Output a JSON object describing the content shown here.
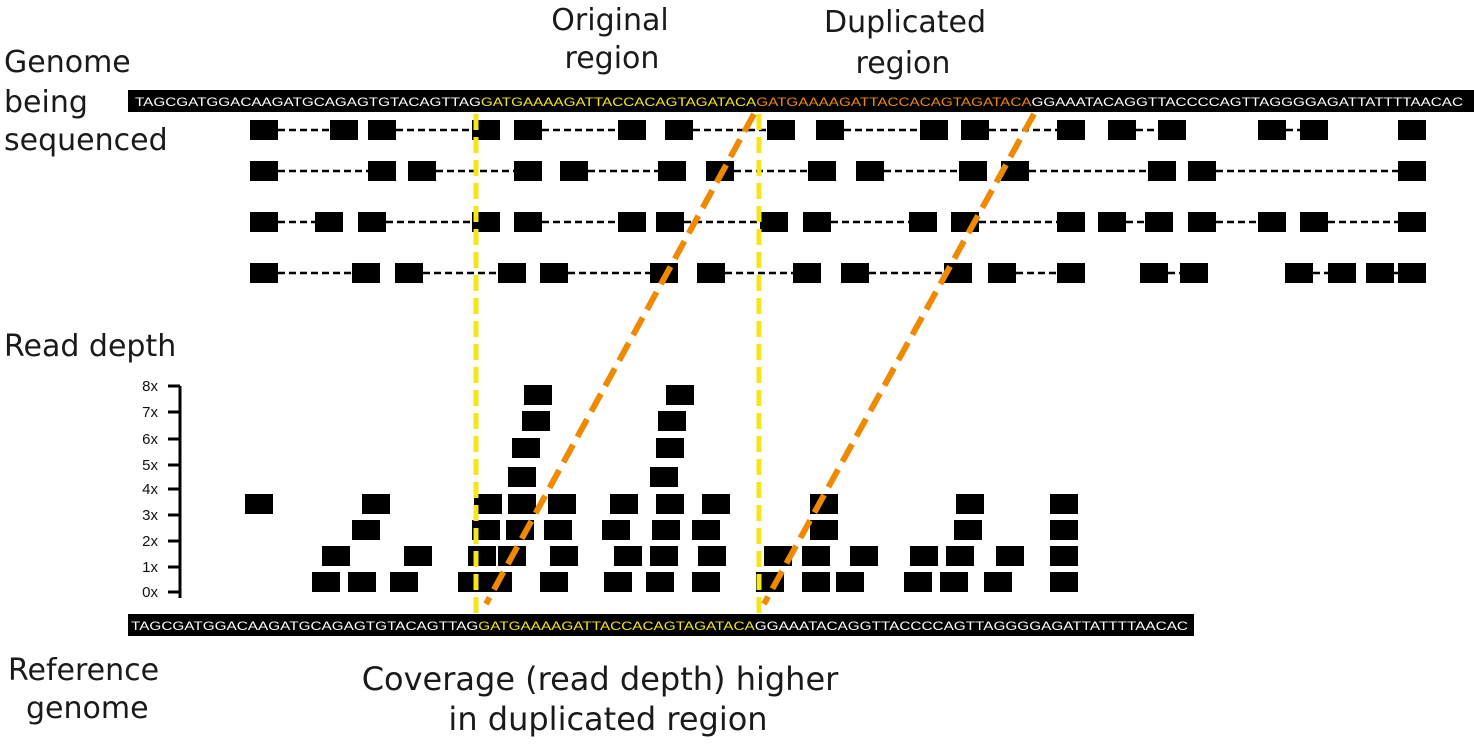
{
  "labels": {
    "genome_line1": "Genome",
    "genome_line2": "being",
    "genome_line3": "sequenced",
    "original_line1": "Original",
    "original_line2": "region",
    "duplicated_line1": "Duplicated",
    "duplicated_line2": "region",
    "read_depth": "Read depth",
    "reference_line1": "Reference",
    "reference_line2": "genome",
    "caption_line1": "Coverage (read depth) higher",
    "caption_line2": "in duplicated region"
  },
  "sequenced_genome": {
    "prefix": "TAGCGATGGACAAGATGCAGAGTGTACAGTTAG",
    "original": "GATGAAAAGATTACCACAGTAGATACA",
    "duplicate": "GATGAAAAGATTACCACAGTAGATACA",
    "suffix": "GGAAATACAGGTTACCCCAGTTAGGGGAGATTATTTTAACAC"
  },
  "reference_genome": {
    "prefix": "TAGCGATGGACAAGATGCAGAGTGTACAGTTAG",
    "region": "GATGAAAAGATTACCACAGTAGATACA",
    "suffix": "GGAAATACAGGTTACCCCAGTTAGGGGAGATTATTTTAACAC"
  },
  "depth_axis": {
    "ticks": [
      "0x",
      "1x",
      "2x",
      "3x",
      "4x",
      "5x",
      "6x",
      "7x",
      "8x"
    ]
  },
  "colors": {
    "original_region": "#f5e616",
    "duplicated_region": "#f08a00",
    "boundary_line": "#f5e616",
    "mapping_line": "#ef8a00",
    "read_block": "#000000"
  }
}
